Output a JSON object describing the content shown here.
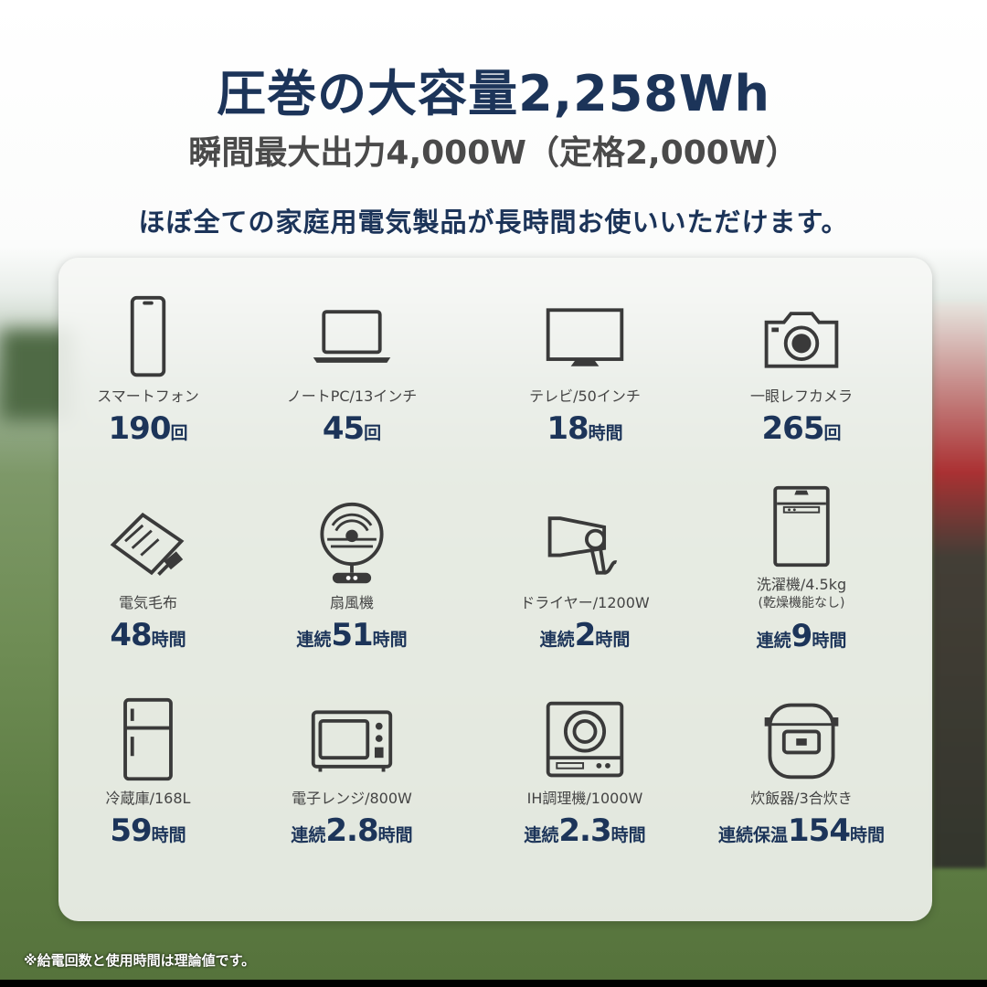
{
  "headline": "圧巻の大容量2,258Wh",
  "subheadline": "瞬間最大出力4,000W（定格2,000W）",
  "tagline": "ほぼ全ての家庭用電気製品が長時間お使いいただけます。",
  "items": [
    {
      "icon": "smartphone-icon",
      "label": "スマートフォン",
      "sub": "",
      "prefix": "",
      "number": "190",
      "unit": "回"
    },
    {
      "icon": "laptop-icon",
      "label": "ノートPC/13インチ",
      "sub": "",
      "prefix": "",
      "number": "45",
      "unit": "回"
    },
    {
      "icon": "tv-icon",
      "label": "テレビ/50インチ",
      "sub": "",
      "prefix": "",
      "number": "18",
      "unit": "時間"
    },
    {
      "icon": "camera-icon",
      "label": "一眼レフカメラ",
      "sub": "",
      "prefix": "",
      "number": "265",
      "unit": "回"
    },
    {
      "icon": "electric-blanket-icon",
      "label": "電気毛布",
      "sub": "",
      "prefix": "",
      "number": "48",
      "unit": "時間"
    },
    {
      "icon": "fan-icon",
      "label": "扇風機",
      "sub": "",
      "prefix": "連続",
      "number": "51",
      "unit": "時間"
    },
    {
      "icon": "hair-dryer-icon",
      "label": "ドライヤー/1200W",
      "sub": "",
      "prefix": "連続",
      "number": "2",
      "unit": "時間"
    },
    {
      "icon": "washing-machine-icon",
      "label": "洗濯機/4.5kg",
      "sub": "(乾燥機能なし)",
      "prefix": "連続",
      "number": "9",
      "unit": "時間"
    },
    {
      "icon": "refrigerator-icon",
      "label": "冷蔵庫/168L",
      "sub": "",
      "prefix": "",
      "number": "59",
      "unit": "時間"
    },
    {
      "icon": "microwave-icon",
      "label": "電子レンジ/800W",
      "sub": "",
      "prefix": "連続",
      "number": "2.8",
      "unit": "時間"
    },
    {
      "icon": "induction-cooker-icon",
      "label": "IH調理機/1000W",
      "sub": "",
      "prefix": "連続",
      "number": "2.3",
      "unit": "時間"
    },
    {
      "icon": "rice-cooker-icon",
      "label": "炊飯器/3合炊き",
      "sub": "",
      "prefix": "連続保温",
      "number": "154",
      "unit": "時間"
    }
  ],
  "footnote": "※給電回数と使用時間は理論値です。",
  "colors": {
    "navy": "#1c3459",
    "icon": "#3a3a3a"
  }
}
